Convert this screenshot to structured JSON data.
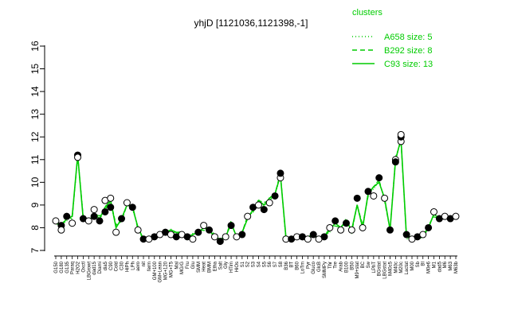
{
  "chart_data": {
    "type": "line",
    "title": "yhjD [1121036,1121398,-1]",
    "xlabel": "",
    "ylabel": "",
    "ylim": [
      7,
      16
    ],
    "yticks": [
      7,
      8,
      9,
      10,
      11,
      12,
      13,
      14,
      15,
      16
    ],
    "grid": false,
    "legend": {
      "title": "clusters",
      "placement": "top-right",
      "entries": [
        {
          "label": "A658 size: 5",
          "style": "dotted"
        },
        {
          "label": "B292 size: 8",
          "style": "dashed"
        },
        {
          "label": "C93 size: 13",
          "style": "solid"
        }
      ]
    },
    "line_color": "#00cc00",
    "categories": [
      "G150",
      "G180",
      "G135",
      "Paraq",
      "H2O2",
      "Oxctl",
      "LBGrowt",
      "dad15",
      "Diami",
      "dia5",
      "C90",
      "Cold",
      "C30",
      "HiPh",
      "LPh",
      "aero",
      "nit",
      "ferm",
      "GM+100",
      "GM+Lean",
      "MG+120",
      "MG+T5",
      "Mal",
      "MG/G",
      "Fru",
      "Glu",
      "SMM",
      "Heat",
      "BMM",
      "Etha",
      "Salt",
      "Gly",
      "HTim",
      "HiOs",
      "S1",
      "S2",
      "S3",
      "S4",
      "S5",
      "S6",
      "S7",
      "S8",
      "B36",
      "BT",
      "B60",
      "LoTm",
      "Pyr",
      "Gluco",
      "GlcB",
      "SMMPy",
      "Thr",
      "Tre",
      "Arab",
      "B100",
      "B50",
      "M9+stat",
      "BC",
      "Sw",
      "LPhT",
      "BGstat",
      "LBGstat",
      "M40c5",
      "M40c",
      "M20c",
      "Lactat",
      "M00",
      "Sb",
      "BI",
      "M0e6",
      "M1",
      "dad5",
      "M6",
      "M63",
      "M63b"
    ],
    "series": [
      {
        "name": "",
        "values": [
          8.3,
          8.1,
          8.4,
          8.5,
          11.2,
          8.4,
          8.3,
          8.6,
          8.4,
          8.9,
          9.2,
          8.0,
          8.4,
          9.0,
          8.9,
          8.0,
          7.5,
          7.5,
          7.6,
          7.7,
          7.8,
          7.9,
          7.8,
          7.7,
          7.6,
          7.7,
          7.8,
          8.0,
          7.9,
          7.6,
          7.5,
          7.6,
          8.2,
          7.6,
          7.8,
          8.4,
          8.8,
          9.2,
          9.0,
          9.3,
          9.5,
          10.3,
          7.6,
          7.5,
          7.6,
          7.6,
          7.6,
          7.7,
          7.5,
          7.6,
          7.9,
          8.2,
          8.0,
          8.3,
          7.9,
          9.0,
          8.0,
          9.5,
          9.8,
          10.0,
          9.3,
          7.9,
          11.0,
          11.9,
          7.6,
          7.5,
          7.6,
          7.6,
          8.0,
          8.6,
          8.4,
          8.4,
          8.5,
          8.5
        ]
      }
    ],
    "points": [
      {
        "i": 0,
        "y": 8.3
      },
      {
        "i": 1,
        "y": 8.1
      },
      {
        "i": 1,
        "y": 7.9
      },
      {
        "i": 2,
        "y": 8.5
      },
      {
        "i": 3,
        "y": 8.2
      },
      {
        "i": 4,
        "y": 11.2
      },
      {
        "i": 4,
        "y": 11.1
      },
      {
        "i": 5,
        "y": 8.4
      },
      {
        "i": 6,
        "y": 8.3
      },
      {
        "i": 7,
        "y": 8.5
      },
      {
        "i": 7,
        "y": 8.8
      },
      {
        "i": 8,
        "y": 8.3
      },
      {
        "i": 9,
        "y": 9.2
      },
      {
        "i": 9,
        "y": 8.7
      },
      {
        "i": 10,
        "y": 9.3
      },
      {
        "i": 10,
        "y": 8.9
      },
      {
        "i": 11,
        "y": 7.8
      },
      {
        "i": 12,
        "y": 8.4
      },
      {
        "i": 13,
        "y": 9.1
      },
      {
        "i": 14,
        "y": 8.9
      },
      {
        "i": 15,
        "y": 7.9
      },
      {
        "i": 16,
        "y": 7.5
      },
      {
        "i": 17,
        "y": 7.5
      },
      {
        "i": 18,
        "y": 7.6
      },
      {
        "i": 19,
        "y": 7.7
      },
      {
        "i": 20,
        "y": 7.8
      },
      {
        "i": 21,
        "y": 7.7
      },
      {
        "i": 22,
        "y": 7.6
      },
      {
        "i": 23,
        "y": 7.7
      },
      {
        "i": 24,
        "y": 7.6
      },
      {
        "i": 25,
        "y": 7.5
      },
      {
        "i": 26,
        "y": 7.8
      },
      {
        "i": 27,
        "y": 8.1
      },
      {
        "i": 28,
        "y": 7.9
      },
      {
        "i": 29,
        "y": 7.6
      },
      {
        "i": 30,
        "y": 7.4
      },
      {
        "i": 31,
        "y": 7.6
      },
      {
        "i": 32,
        "y": 8.1
      },
      {
        "i": 33,
        "y": 7.6
      },
      {
        "i": 34,
        "y": 7.7
      },
      {
        "i": 35,
        "y": 8.5
      },
      {
        "i": 36,
        "y": 8.9
      },
      {
        "i": 37,
        "y": 9.0
      },
      {
        "i": 38,
        "y": 8.8
      },
      {
        "i": 39,
        "y": 9.1
      },
      {
        "i": 40,
        "y": 9.4
      },
      {
        "i": 41,
        "y": 10.2
      },
      {
        "i": 41,
        "y": 10.4
      },
      {
        "i": 42,
        "y": 7.5
      },
      {
        "i": 43,
        "y": 7.5
      },
      {
        "i": 44,
        "y": 7.6
      },
      {
        "i": 45,
        "y": 7.6
      },
      {
        "i": 46,
        "y": 7.5
      },
      {
        "i": 47,
        "y": 7.7
      },
      {
        "i": 48,
        "y": 7.5
      },
      {
        "i": 49,
        "y": 7.6
      },
      {
        "i": 50,
        "y": 8.0
      },
      {
        "i": 51,
        "y": 8.3
      },
      {
        "i": 52,
        "y": 7.9
      },
      {
        "i": 53,
        "y": 8.2
      },
      {
        "i": 54,
        "y": 7.9
      },
      {
        "i": 55,
        "y": 9.3
      },
      {
        "i": 56,
        "y": 8.0
      },
      {
        "i": 57,
        "y": 9.6
      },
      {
        "i": 58,
        "y": 9.4
      },
      {
        "i": 59,
        "y": 10.2
      },
      {
        "i": 60,
        "y": 9.3
      },
      {
        "i": 61,
        "y": 7.9
      },
      {
        "i": 62,
        "y": 11.0
      },
      {
        "i": 62,
        "y": 10.9
      },
      {
        "i": 63,
        "y": 11.8
      },
      {
        "i": 63,
        "y": 12.0
      },
      {
        "i": 63,
        "y": 12.1
      },
      {
        "i": 64,
        "y": 7.7
      },
      {
        "i": 65,
        "y": 7.5
      },
      {
        "i": 66,
        "y": 7.6
      },
      {
        "i": 67,
        "y": 7.7
      },
      {
        "i": 68,
        "y": 8.0
      },
      {
        "i": 69,
        "y": 8.7
      },
      {
        "i": 70,
        "y": 8.4
      },
      {
        "i": 71,
        "y": 8.5
      },
      {
        "i": 72,
        "y": 8.4
      },
      {
        "i": 73,
        "y": 8.5
      }
    ]
  }
}
